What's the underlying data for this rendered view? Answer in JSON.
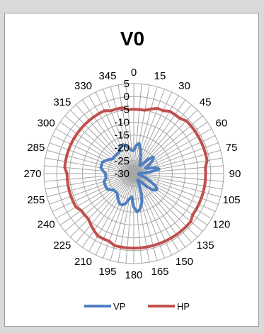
{
  "chart_data": {
    "type": "radar",
    "title": "V0",
    "angle_labels": [
      "0",
      "15",
      "30",
      "45",
      "60",
      "75",
      "90",
      "105",
      "120",
      "135",
      "150",
      "165",
      "180",
      "195",
      "210",
      "225",
      "240",
      "255",
      "270",
      "285",
      "300",
      "315",
      "330",
      "345"
    ],
    "radial_ticks": [
      5,
      0,
      -5,
      -10,
      -15,
      -20,
      -25,
      -30
    ],
    "radial_range": [
      -30,
      5
    ],
    "angle_step_deg": 5,
    "grid": true,
    "legend_position": "bottom",
    "series": [
      {
        "name": "VP",
        "color": "#4f7fc0",
        "values": [
          -21,
          -19,
          -18,
          -20,
          -22,
          -24,
          -25,
          -26,
          -26,
          -22,
          -20,
          -21,
          -23,
          -25,
          -24,
          -21,
          -20,
          -24,
          -28,
          -27,
          -28,
          -27,
          -25,
          -23,
          -20,
          -19,
          -20,
          -23,
          -26,
          -27,
          -27,
          -25,
          -21,
          -18,
          -16,
          -15,
          -17,
          -21,
          -20,
          -18,
          -17,
          -17,
          -18,
          -19,
          -20,
          -20,
          -20,
          -19,
          -18,
          -18,
          -18,
          -18,
          -19,
          -19,
          -19,
          -18,
          -17,
          -17,
          -17,
          -18,
          -19,
          -20,
          -20,
          -20,
          -20,
          -20,
          -19,
          -18,
          -18,
          -19,
          -20,
          -21
        ]
      },
      {
        "name": "HP",
        "color": "#c0504d",
        "values": [
          -5,
          -5,
          -5,
          -4,
          -3,
          -3,
          -2,
          -2,
          -2,
          -1,
          -1,
          -1,
          -1,
          -1,
          -1,
          -1,
          -1,
          -2,
          -2,
          -2,
          -2,
          -2,
          -2,
          -2,
          -2,
          -2,
          -1,
          -1,
          -1,
          -1,
          -1,
          -1,
          -1,
          -1,
          -1,
          -1,
          -1,
          -1,
          -1,
          -1,
          -2,
          -2,
          -2,
          -3,
          -4,
          -5,
          -5,
          -5,
          -4,
          -4,
          -4,
          -4,
          -4,
          -4,
          -4,
          -3,
          -3,
          -3,
          -3,
          -3,
          -3,
          -3,
          -3,
          -3,
          -3,
          -3,
          -3,
          -3,
          -4,
          -4,
          -4,
          -5
        ]
      }
    ]
  }
}
